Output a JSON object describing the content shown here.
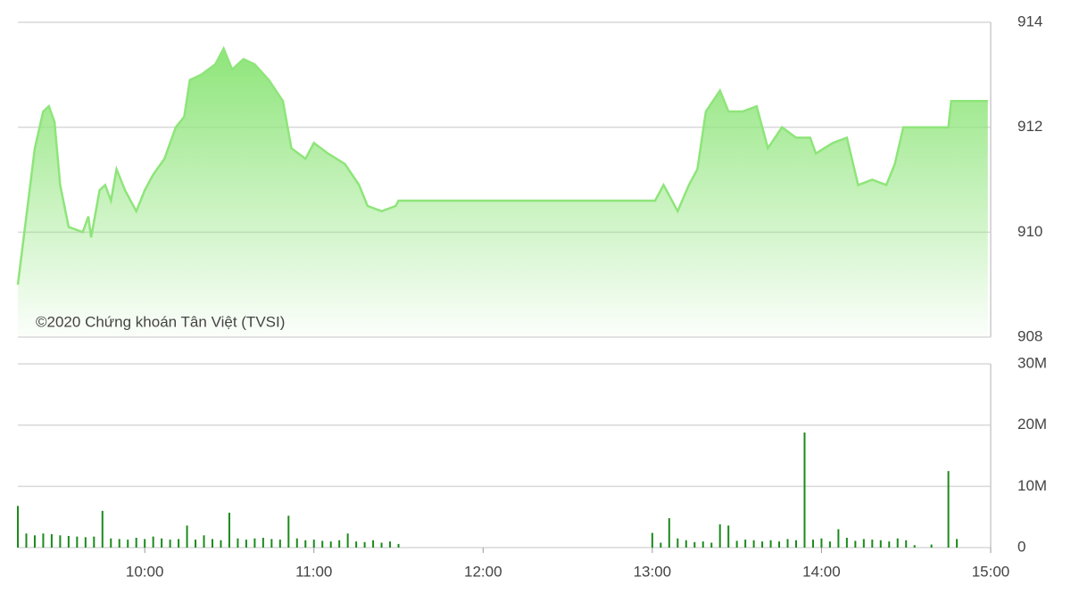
{
  "chart_data": [
    {
      "type": "area",
      "annotation": "©2020 Chứng khoán Tân Việt (TVSI)",
      "color": "#8ee57a",
      "x": [
        555,
        558,
        561,
        564,
        566,
        568,
        570,
        573,
        578,
        580,
        581,
        584,
        586,
        588,
        590,
        593,
        597,
        600,
        603,
        607,
        611,
        614,
        616,
        620,
        625,
        628,
        631,
        635,
        639,
        644,
        649,
        652,
        657,
        660,
        665,
        671,
        676,
        679,
        684,
        689,
        690,
        781,
        784,
        789,
        793,
        796,
        799,
        804,
        807,
        812,
        817,
        821,
        826,
        831,
        836,
        838,
        844,
        849,
        853,
        858,
        863,
        866,
        869,
        885,
        886,
        899
      ],
      "values": [
        909.0,
        910.3,
        911.6,
        912.3,
        912.4,
        912.1,
        910.9,
        910.1,
        910.0,
        910.3,
        909.9,
        910.8,
        910.9,
        910.6,
        911.2,
        910.8,
        910.4,
        910.8,
        911.1,
        911.4,
        912.0,
        912.2,
        912.9,
        913.0,
        913.2,
        913.5,
        913.1,
        913.3,
        913.2,
        912.9,
        912.5,
        911.6,
        911.4,
        911.7,
        911.5,
        911.3,
        910.9,
        910.5,
        910.4,
        910.5,
        910.6,
        910.6,
        910.9,
        910.4,
        910.9,
        911.2,
        912.3,
        912.7,
        912.3,
        912.3,
        912.4,
        911.6,
        912.0,
        911.8,
        911.8,
        911.5,
        911.7,
        911.8,
        910.9,
        911.0,
        910.9,
        911.3,
        912.0,
        912.0,
        912.5,
        912.5
      ],
      "xlim": [
        555,
        900
      ],
      "ylim": [
        908,
        914
      ],
      "yticks": [
        908,
        910,
        912,
        914
      ],
      "grid": true
    },
    {
      "type": "bar",
      "color": "#1b8a1b",
      "x": [
        555,
        558,
        561,
        564,
        567,
        570,
        573,
        576,
        579,
        582,
        585,
        588,
        591,
        594,
        597,
        600,
        603,
        606,
        609,
        612,
        615,
        618,
        621,
        624,
        627,
        630,
        633,
        636,
        639,
        642,
        645,
        648,
        651,
        654,
        657,
        660,
        663,
        666,
        669,
        672,
        675,
        678,
        681,
        684,
        687,
        690,
        780,
        783,
        786,
        789,
        792,
        795,
        798,
        801,
        804,
        807,
        810,
        813,
        816,
        819,
        822,
        825,
        828,
        831,
        834,
        837,
        840,
        843,
        846,
        849,
        852,
        855,
        858,
        861,
        864,
        867,
        870,
        873,
        879,
        885,
        888
      ],
      "values": [
        6.8,
        2.3,
        2.0,
        2.3,
        2.2,
        2.0,
        1.9,
        1.8,
        1.7,
        1.8,
        6.0,
        1.5,
        1.4,
        1.3,
        1.6,
        1.4,
        1.8,
        1.5,
        1.3,
        1.4,
        3.6,
        1.3,
        2.0,
        1.4,
        1.2,
        5.7,
        1.5,
        1.3,
        1.5,
        1.6,
        1.4,
        1.3,
        5.2,
        1.5,
        1.2,
        1.3,
        1.1,
        1.0,
        1.2,
        2.3,
        1.0,
        0.9,
        1.2,
        0.8,
        1.0,
        0.6,
        2.4,
        0.8,
        4.8,
        1.5,
        1.2,
        0.9,
        1.0,
        0.8,
        3.8,
        3.6,
        1.1,
        1.3,
        1.2,
        1.0,
        1.2,
        1.0,
        1.4,
        1.2,
        18.8,
        1.3,
        1.5,
        1.0,
        3.0,
        1.6,
        1.1,
        1.4,
        1.3,
        1.2,
        1.0,
        1.5,
        1.2,
        0.4,
        0.5,
        12.5,
        1.4
      ],
      "xlim": [
        555,
        900
      ],
      "xticks": [
        {
          "value": 600,
          "label": "10:00"
        },
        {
          "value": 660,
          "label": "11:00"
        },
        {
          "value": 720,
          "label": "12:00"
        },
        {
          "value": 780,
          "label": "13:00"
        },
        {
          "value": 840,
          "label": "14:00"
        },
        {
          "value": 900,
          "label": "15:00"
        }
      ],
      "ylim": [
        0,
        30
      ],
      "yticks": [
        0,
        {
          "value": 10,
          "label": "10M"
        },
        {
          "value": 20,
          "label": "20M"
        },
        {
          "value": 30,
          "label": "30M"
        }
      ],
      "grid": true
    }
  ]
}
